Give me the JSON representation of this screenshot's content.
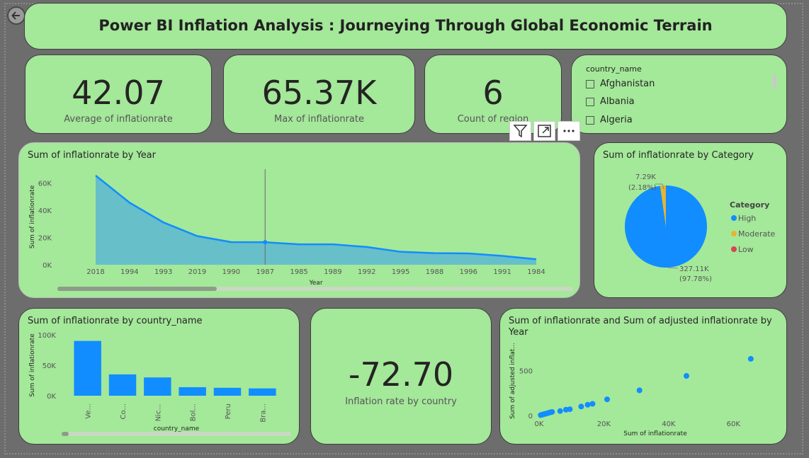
{
  "header": {
    "title": "Power BI Inflation Analysis :  Journeying Through Global Economic Terrain",
    "back_icon": "back-arrow-icon"
  },
  "kpis": [
    {
      "value": "42.07",
      "label": "Average of inflationrate"
    },
    {
      "value": "65.37K",
      "label": "Max of inflationrate"
    },
    {
      "value": "6",
      "label": "Count of region"
    }
  ],
  "slicer": {
    "title": "country_name",
    "items": [
      "Afghanistan",
      "Albania",
      "Algeria"
    ]
  },
  "toolbar": {
    "icons": [
      "filter-icon",
      "focus-mode-icon",
      "more-options-icon"
    ]
  },
  "country_kpi": {
    "value": "-72.70",
    "label": "Inflation rate by country"
  },
  "chart_data": [
    {
      "type": "area",
      "title": "Sum of inflationrate by Year",
      "xlabel": "Year",
      "ylabel": "Sum of inflationrate",
      "categories": [
        "2018",
        "1994",
        "1993",
        "2019",
        "1990",
        "1987",
        "1985",
        "1989",
        "1992",
        "1995",
        "1988",
        "1996",
        "1991",
        "1984"
      ],
      "values": [
        65370,
        45500,
        31000,
        21000,
        16600,
        16500,
        15000,
        15000,
        13000,
        9500,
        8500,
        8300,
        6500,
        4000
      ],
      "yticks": [
        "0K",
        "20K",
        "40K",
        "60K"
      ],
      "ylim": [
        0,
        70000
      ]
    },
    {
      "type": "pie",
      "title": "Sum of inflationrate by Category",
      "legend_title": "Category",
      "slices": [
        {
          "name": "High",
          "value": 327110,
          "label": "327.11K",
          "pct": "(97.78%)",
          "color": "#118dff"
        },
        {
          "name": "Moderate",
          "value": 7290,
          "label": "7.29K",
          "pct": "(2.18%)",
          "color": "#e6b62e"
        },
        {
          "name": "Low",
          "value": 134,
          "label": "",
          "pct": "",
          "color": "#d64550"
        }
      ]
    },
    {
      "type": "bar",
      "title": "Sum of inflationrate by country_name",
      "xlabel": "country_name",
      "ylabel": "Sum of inflationrate",
      "categories": [
        "Ve...",
        "Co...",
        "Nic...",
        "Bol...",
        "Peru",
        "Bra..."
      ],
      "values": [
        90000,
        35000,
        30000,
        14000,
        13000,
        12000
      ],
      "yticks": [
        "0K",
        "50K",
        "100K"
      ],
      "ylim": [
        0,
        100000
      ]
    },
    {
      "type": "scatter",
      "title": "Sum of inflationrate and Sum of adjusted inflationrate by Year",
      "xlabel": "Sum of inflationrate",
      "ylabel": "Sum of adjusted inflat...",
      "xticks": [
        "0K",
        "20K",
        "40K",
        "60K"
      ],
      "yticks": [
        "0",
        "500"
      ],
      "xlim": [
        0,
        70000
      ],
      "ylim": [
        0,
        700
      ],
      "points": [
        [
          500,
          5
        ],
        [
          1000,
          10
        ],
        [
          1500,
          15
        ],
        [
          2000,
          20
        ],
        [
          2500,
          25
        ],
        [
          3000,
          30
        ],
        [
          3500,
          35
        ],
        [
          4000,
          40
        ],
        [
          6500,
          50
        ],
        [
          8300,
          65
        ],
        [
          9500,
          70
        ],
        [
          13000,
          100
        ],
        [
          15000,
          120
        ],
        [
          16500,
          130
        ],
        [
          21000,
          180
        ],
        [
          31000,
          280
        ],
        [
          45500,
          440
        ],
        [
          65370,
          630
        ]
      ]
    }
  ]
}
